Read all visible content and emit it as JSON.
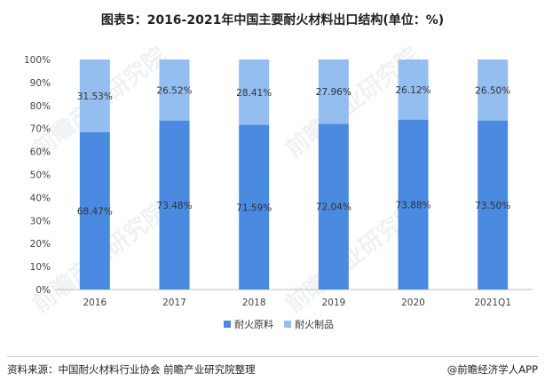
{
  "title": "图表5：2016-2021年中国主要耐火材料出口结构(单位：%)",
  "source": "资料来源：中国耐火材料行业协会 前瞻产业研究院整理",
  "credit": "@前瞻经济学人APP",
  "watermark": "前瞻产业研究院",
  "colors": {
    "series1": "#4a8ae0",
    "series2": "#94bdf0"
  },
  "chart_data": {
    "type": "bar",
    "stacked": true,
    "title": "图表5：2016-2021年中国主要耐火材料出口结构(单位：%)",
    "categories": [
      "2016",
      "2017",
      "2018",
      "2019",
      "2020",
      "2021Q1"
    ],
    "series": [
      {
        "name": "耐火原料",
        "values": [
          68.47,
          73.48,
          71.59,
          72.04,
          73.88,
          73.5
        ],
        "labels": [
          "68.47%",
          "73.48%",
          "71.59%",
          "72.04%",
          "73.88%",
          "73.50%"
        ]
      },
      {
        "name": "耐火制品",
        "values": [
          31.53,
          26.52,
          28.41,
          27.96,
          26.12,
          26.5
        ],
        "labels": [
          "31.53%",
          "26.52%",
          "28.41%",
          "27.96%",
          "26.12%",
          "26.50%"
        ]
      }
    ],
    "ylim": [
      0,
      100
    ],
    "yticks": [
      "0%",
      "10%",
      "20%",
      "30%",
      "40%",
      "50%",
      "60%",
      "70%",
      "80%",
      "90%",
      "100%"
    ],
    "legend_position": "bottom"
  }
}
